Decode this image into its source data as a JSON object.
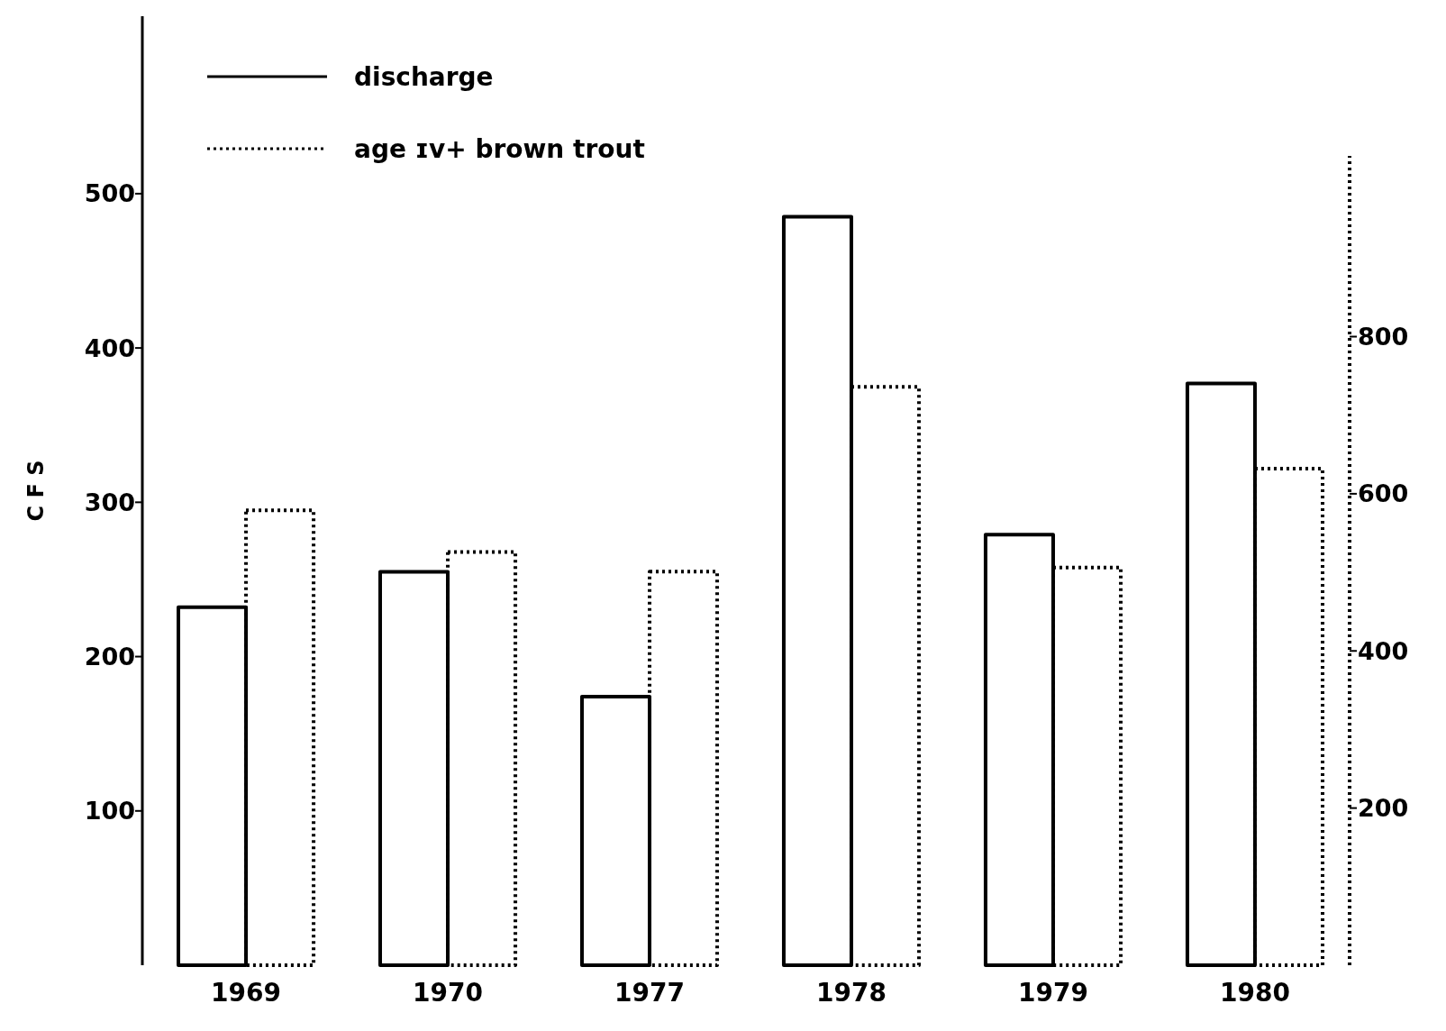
{
  "chart_data": {
    "type": "bar",
    "ylabel": "C F S",
    "categories": [
      "1969",
      "1970",
      "1977",
      "1978",
      "1979",
      "1980"
    ],
    "series": [
      {
        "name": "discharge",
        "color": "#000000",
        "line_style": "solid",
        "values": [
          232,
          255,
          174,
          485,
          279,
          377
        ]
      },
      {
        "name": "age ɪv+ brown trout",
        "color": "#000000",
        "line_style": "dotted",
        "axis": "y2",
        "values": [
          579,
          526,
          501,
          736,
          506,
          632
        ]
      }
    ],
    "ylim": [
      0,
      615
    ],
    "yticks": [
      100,
      200,
      300,
      400,
      500
    ],
    "y2lim": [
      0,
      1030
    ],
    "y2ticks": [
      200,
      400,
      600,
      800
    ],
    "legend": "top left",
    "grid": false
  }
}
